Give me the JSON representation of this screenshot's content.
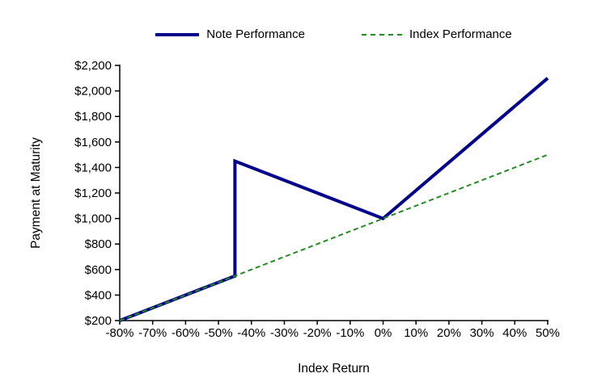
{
  "chart_data": {
    "type": "line",
    "title": "",
    "xlabel": "Index Return",
    "ylabel": "Payment at Maturity",
    "xlim": [
      -80,
      50
    ],
    "ylim": [
      200,
      2200
    ],
    "grid": false,
    "legend_position": "top-center",
    "background_color": "#FFFFFF",
    "axis_color": "#000000",
    "x_ticks": [
      -80,
      -70,
      -60,
      -50,
      -40,
      -30,
      -20,
      -10,
      0,
      10,
      20,
      30,
      40,
      50
    ],
    "x_tick_labels": [
      "-80%",
      "-70%",
      "-60%",
      "-50%",
      "-40%",
      "-30%",
      "-20%",
      "-10%",
      "0%",
      "10%",
      "20%",
      "30%",
      "40%",
      "50%"
    ],
    "y_ticks": [
      200,
      400,
      600,
      800,
      1000,
      1200,
      1400,
      1600,
      1800,
      2000,
      2200
    ],
    "y_tick_labels": [
      "$200",
      "$400",
      "$600",
      "$800",
      "$1,000",
      "$1,200",
      "$1,400",
      "$1,600",
      "$1,800",
      "$2,000",
      "$2,200"
    ],
    "series": [
      {
        "name": "Note Performance",
        "color": "#00008B",
        "style": "solid",
        "line_width": 4,
        "points": [
          [
            -80,
            200
          ],
          [
            -45,
            550
          ],
          [
            -45,
            1450
          ],
          [
            0,
            1000
          ],
          [
            50,
            2100
          ]
        ]
      },
      {
        "name": "Index Performance",
        "color": "#228B22",
        "style": "dashed",
        "line_width": 2,
        "points": [
          [
            -80,
            200
          ],
          [
            50,
            1500
          ]
        ]
      }
    ]
  },
  "legend": {
    "items": [
      {
        "label": "Note Performance"
      },
      {
        "label": "Index Performance"
      }
    ]
  }
}
